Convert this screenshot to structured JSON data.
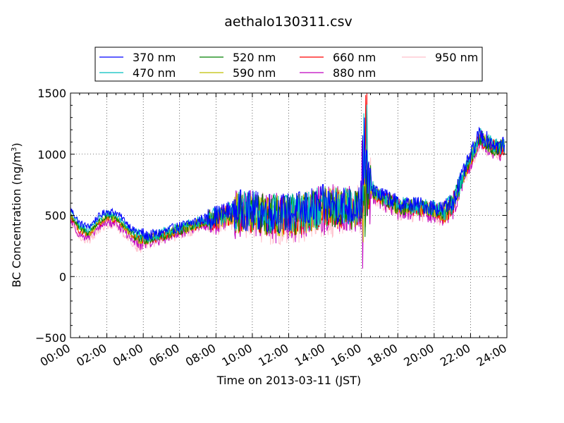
{
  "chart_data": {
    "type": "line",
    "title": "aethalo130311.csv",
    "xlabel": "Time on 2013-03-11 (JST)",
    "ylabel_main": "BC Concentration (ng/m",
    "ylabel_sup": "3",
    "ylabel_end": ")",
    "x_unit": "hours",
    "xlim": [
      0,
      24
    ],
    "ylim": [
      -500,
      1500
    ],
    "x_ticks": [
      0,
      2,
      4,
      6,
      8,
      10,
      12,
      14,
      16,
      18,
      20,
      22,
      24
    ],
    "x_tick_labels": [
      "00:00",
      "02:00",
      "04:00",
      "06:00",
      "08:00",
      "10:00",
      "12:00",
      "14:00",
      "16:00",
      "18:00",
      "20:00",
      "22:00",
      "24:00"
    ],
    "y_ticks": [
      -500,
      0,
      500,
      1000,
      1500
    ],
    "y_tick_labels": [
      "−500",
      "0",
      "500",
      "1000",
      "1500"
    ],
    "grid": true,
    "legend_position": "top",
    "series": [
      {
        "name": "370 nm",
        "color": "#0000ff"
      },
      {
        "name": "470 nm",
        "color": "#00bfbf"
      },
      {
        "name": "520 nm",
        "color": "#008000"
      },
      {
        "name": "590 nm",
        "color": "#bfbf00"
      },
      {
        "name": "660 nm",
        "color": "#ff0000"
      },
      {
        "name": "880 nm",
        "color": "#bf00bf"
      },
      {
        "name": "950 nm",
        "color": "#ffc0cb"
      }
    ],
    "baseline": {
      "x": [
        0,
        0.5,
        1,
        1.5,
        2,
        2.5,
        3,
        3.5,
        4,
        5,
        6,
        7,
        8,
        9,
        10,
        11,
        12,
        13,
        14,
        15,
        15.5,
        16,
        16.2,
        16.5,
        17,
        17.5,
        18,
        19,
        20,
        20.5,
        21,
        21.5,
        22,
        22.5,
        23,
        23.5,
        23.9
      ],
      "y": [
        500,
        380,
        350,
        430,
        480,
        470,
        400,
        320,
        300,
        330,
        380,
        430,
        470,
        520,
        510,
        500,
        490,
        520,
        560,
        560,
        540,
        600,
        760,
        720,
        640,
        620,
        570,
        560,
        540,
        520,
        580,
        780,
        960,
        1140,
        1080,
        1040,
        1060
      ]
    }
  }
}
